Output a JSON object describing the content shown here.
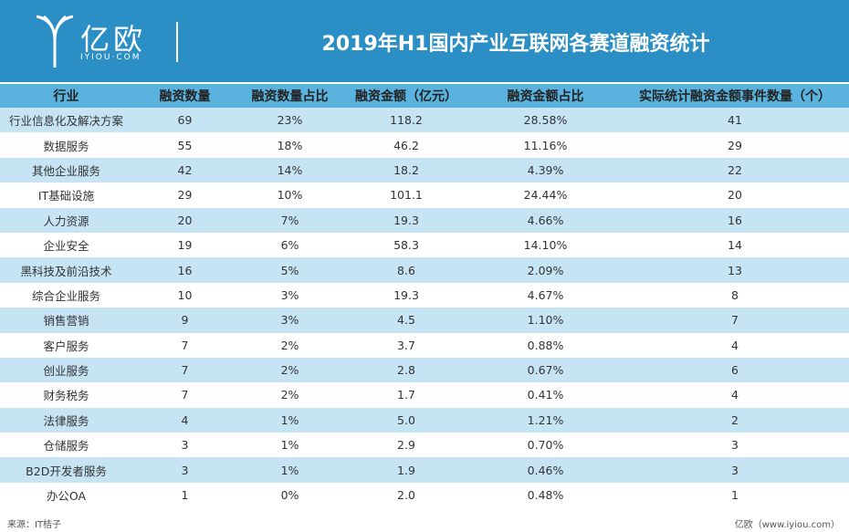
{
  "header": {
    "logo_text": "亿欧",
    "logo_sub": "IYIOU·COM",
    "title": "2019年H1国内产业互联网各赛道融资统计"
  },
  "table": {
    "columns": [
      "行业",
      "融资数量",
      "融资数量占比",
      "融资金额（亿元）",
      "融资金额占比",
      "实际统计融资金额事件数量（个）"
    ],
    "rows": [
      [
        "行业信息化及解决方案",
        "69",
        "23%",
        "118.2",
        "28.58%",
        "41"
      ],
      [
        "数据服务",
        "55",
        "18%",
        "46.2",
        "11.16%",
        "29"
      ],
      [
        "其他企业服务",
        "42",
        "14%",
        "18.2",
        "4.39%",
        "22"
      ],
      [
        "IT基础设施",
        "29",
        "10%",
        "101.1",
        "24.44%",
        "20"
      ],
      [
        "人力资源",
        "20",
        "7%",
        "19.3",
        "4.66%",
        "16"
      ],
      [
        "企业安全",
        "19",
        "6%",
        "58.3",
        "14.10%",
        "14"
      ],
      [
        "黑科技及前沿技术",
        "16",
        "5%",
        "8.6",
        "2.09%",
        "13"
      ],
      [
        "综合企业服务",
        "10",
        "3%",
        "19.3",
        "4.67%",
        "8"
      ],
      [
        "销售营销",
        "9",
        "3%",
        "4.5",
        "1.10%",
        "7"
      ],
      [
        "客户服务",
        "7",
        "2%",
        "3.7",
        "0.88%",
        "4"
      ],
      [
        "创业服务",
        "7",
        "2%",
        "2.8",
        "0.67%",
        "6"
      ],
      [
        "财务税务",
        "7",
        "2%",
        "1.7",
        "0.41%",
        "4"
      ],
      [
        "法律服务",
        "4",
        "1%",
        "5.0",
        "1.21%",
        "2"
      ],
      [
        "仓储服务",
        "3",
        "1%",
        "2.9",
        "0.70%",
        "3"
      ],
      [
        "B2D开发者服务",
        "3",
        "1%",
        "1.9",
        "0.46%",
        "3"
      ],
      [
        "办公OA",
        "1",
        "0%",
        "2.0",
        "0.48%",
        "1"
      ]
    ]
  },
  "footer": {
    "source": "来源：IT桔子",
    "credit": "亿欧（www.iyiou.com）"
  }
}
